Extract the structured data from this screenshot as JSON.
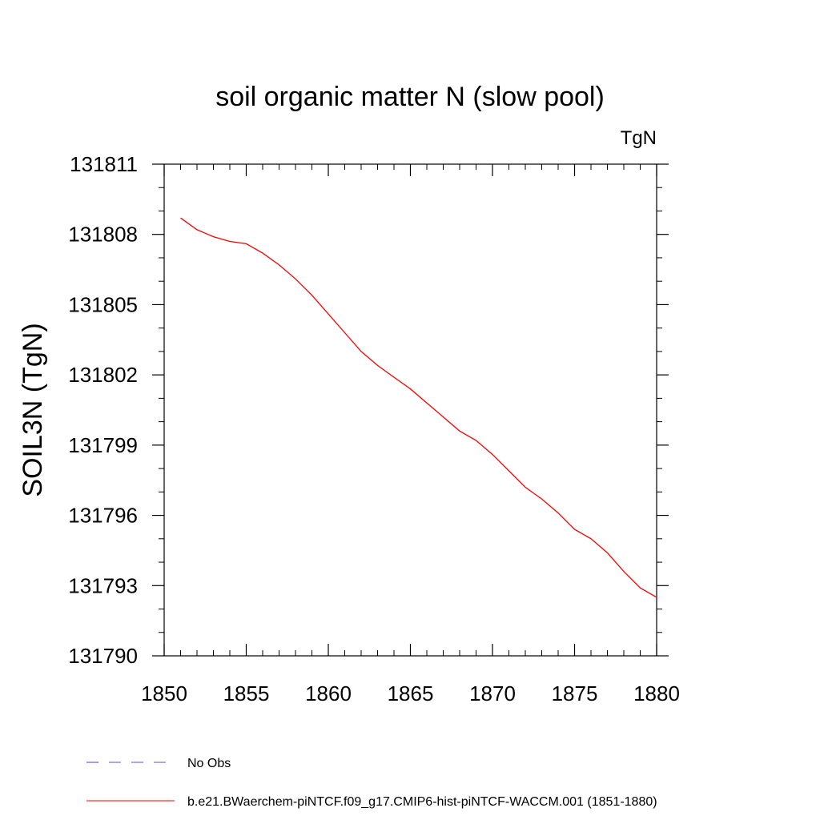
{
  "chart_data": {
    "type": "line",
    "title": "soil organic matter N (slow pool)",
    "units": "TgN",
    "ylabel": "SOIL3N  (TgN)",
    "xlabel": "",
    "xlim": [
      1850,
      1880
    ],
    "ylim": [
      131790,
      131811
    ],
    "xticks": [
      1850,
      1855,
      1860,
      1865,
      1870,
      1875,
      1880
    ],
    "yticks": [
      131790,
      131793,
      131796,
      131799,
      131802,
      131805,
      131808,
      131811
    ],
    "x_minor_step": 1,
    "y_minor_step": 1,
    "grid": false,
    "legend_position": "bottom",
    "series": [
      {
        "name": "No Obs",
        "color": "#5a4fcf",
        "style": "dashed",
        "x": [],
        "y": []
      },
      {
        "name": "b.e21.BWaerchem-piNTCF.f09_g17.CMIP6-hist-piNTCF-WACCM.001 (1851-1880)",
        "color": "#ff0000",
        "style": "solid",
        "x": [
          1851,
          1852,
          1853,
          1854,
          1855,
          1856,
          1857,
          1858,
          1859,
          1860,
          1861,
          1862,
          1863,
          1864,
          1865,
          1866,
          1867,
          1868,
          1869,
          1870,
          1871,
          1872,
          1873,
          1874,
          1875,
          1876,
          1877,
          1878,
          1879,
          1880
        ],
        "y": [
          131808.7,
          131808.2,
          131807.9,
          131807.7,
          131807.6,
          131807.2,
          131806.7,
          131806.1,
          131805.4,
          131804.6,
          131803.8,
          131803.0,
          131802.4,
          131801.9,
          131801.4,
          131800.8,
          131800.2,
          131799.6,
          131799.2,
          131798.6,
          131797.9,
          131797.2,
          131796.7,
          131796.1,
          131795.4,
          131795.0,
          131794.4,
          131793.6,
          131792.9,
          131792.5
        ]
      }
    ]
  }
}
